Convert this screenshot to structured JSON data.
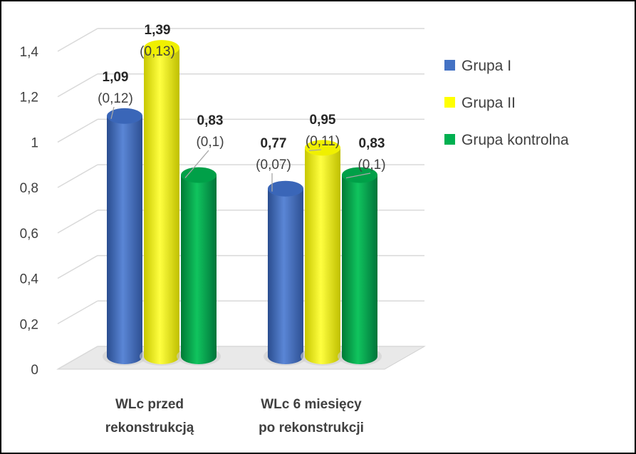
{
  "chart_data": {
    "type": "bar",
    "style": "3d-cylinder",
    "title": "",
    "xlabel": "",
    "ylabel": "",
    "ylim": [
      0,
      1.4
    ],
    "yticks": [
      0,
      0.2,
      0.4,
      0.6,
      0.8,
      1,
      1.2,
      1.4
    ],
    "ytick_labels": [
      "0",
      "0,2",
      "0,4",
      "0,6",
      "0,8",
      "1",
      "1,2",
      "1,4"
    ],
    "grid": true,
    "legend_position": "right",
    "categories": [
      {
        "line1": "WLc przed",
        "line2": "rekonstrukcją"
      },
      {
        "line1": "WLc 6 miesięcy",
        "line2": "po rekonstrukcji"
      }
    ],
    "series": [
      {
        "name": "Grupa I",
        "color": "#4472C4",
        "values": [
          1.09,
          0.77
        ],
        "value_labels": [
          "1,09",
          "0,77"
        ],
        "sd_labels": [
          "(0,12)",
          "(0,07)"
        ]
      },
      {
        "name": "Grupa II",
        "color": "#FFFF00",
        "values": [
          1.39,
          0.95
        ],
        "value_labels": [
          "1,39",
          "0,95"
        ],
        "sd_labels": [
          "(0,13)",
          "(0,11)"
        ]
      },
      {
        "name": "Grupa kontrolna",
        "color": "#00B050",
        "values": [
          0.83,
          0.83
        ],
        "value_labels": [
          "0,83",
          "0,83"
        ],
        "sd_labels": [
          "(0,1)",
          "(0,1)"
        ]
      }
    ]
  }
}
